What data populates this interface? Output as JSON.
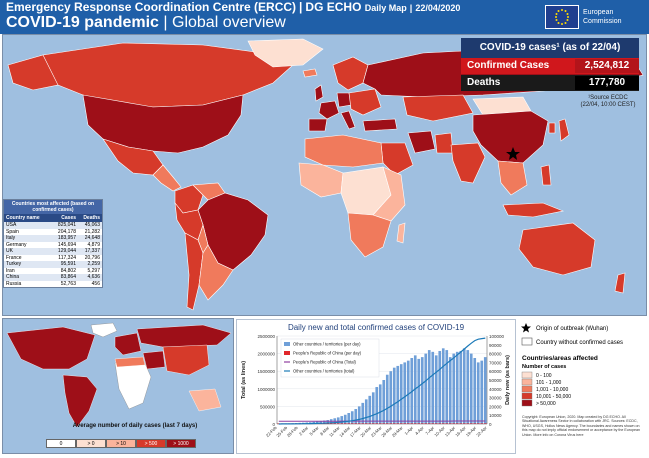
{
  "header": {
    "org": "Emergency Response Coordination Centre (ERCC)",
    "sep1": "|",
    "dept": "DG ECHO",
    "map_type": "Daily Map",
    "sep2": "|",
    "date": "22/04/2020",
    "title": "COVID-19 pandemic",
    "sep3": "|",
    "subtitle": "Global overview",
    "logo_line1": "European",
    "logo_line2": "Commission"
  },
  "summary": {
    "title": "COVID-19 cases¹ (as of 22/04)",
    "confirmed_label": "Confirmed Cases",
    "confirmed_value": "2,524,812",
    "deaths_label": "Deaths",
    "deaths_value": "177,780",
    "source_line1": "¹Source ECDC",
    "source_line2": "(22/04, 10:00 CEST)"
  },
  "colors": {
    "c1": "#fde0d2",
    "c2": "#fbb49c",
    "c3": "#f07a5c",
    "c4": "#d63a2a",
    "c5": "#9e0f18",
    "ocean": "#9fbfe0",
    "nodata": "#ffffff"
  },
  "table": {
    "title": "Countries most affected (based on confirmed cases)",
    "headers": [
      "Country name",
      "Cases",
      "Deaths"
    ],
    "rows": [
      [
        "USA",
        "825,041",
        "45,063"
      ],
      [
        "Spain",
        "204,178",
        "21,282"
      ],
      [
        "Italy",
        "183,957",
        "24,648"
      ],
      [
        "Germany",
        "145,694",
        "4,879"
      ],
      [
        "UK",
        "129,044",
        "17,337"
      ],
      [
        "France",
        "117,324",
        "20,796"
      ],
      [
        "Turkey",
        "95,591",
        "2,259"
      ],
      [
        "Iran",
        "84,802",
        "5,297"
      ],
      [
        "China",
        "83,864",
        "4,636"
      ],
      [
        "Russia",
        "52,763",
        "456"
      ]
    ]
  },
  "chart_data": {
    "type": "bar",
    "title": "Daily new and total confirmed cases of COVID-19",
    "ylabel_left": "Total (as lines)",
    "ylabel_right": "Daily new (as bars)",
    "y_left_ticks": [
      "0",
      "500000",
      "1000000",
      "1500000",
      "2000000",
      "2500000"
    ],
    "y_right_ticks": [
      "0",
      "10000",
      "20000",
      "30000",
      "40000",
      "50000",
      "60000",
      "70000",
      "80000",
      "90000",
      "100000"
    ],
    "ylim_left": [
      0,
      2500000
    ],
    "ylim_right": [
      0,
      100000
    ],
    "x_ticks": [
      "22-Feb",
      "25-Feb",
      "28-Feb",
      "2-Mar",
      "5-Mar",
      "8-Mar",
      "11-Mar",
      "14-Mar",
      "17-Mar",
      "20-Mar",
      "23-Mar",
      "26-Mar",
      "29-Mar",
      "1-Apr",
      "4-Apr",
      "7-Apr",
      "10-Apr",
      "13-Apr",
      "16-Apr",
      "19-Apr",
      "22-Apr"
    ],
    "series": [
      {
        "name": "Other countries / territories (per day)",
        "kind": "bar",
        "values": [
          300,
          400,
          500,
          600,
          800,
          1100,
          1300,
          1500,
          1800,
          2000,
          2500,
          3000,
          3500,
          4000,
          4500,
          5500,
          6500,
          7500,
          9000,
          10500,
          12500,
          14500,
          17000,
          20000,
          24000,
          28000,
          32000,
          36000,
          42000,
          45000,
          50000,
          56000,
          60000,
          64000,
          66000,
          68000,
          70000,
          72000,
          75000,
          78000,
          74000,
          76000,
          80000,
          84000,
          82000,
          78000,
          83000,
          86000,
          84000,
          76000,
          80000,
          82000,
          83000,
          86000,
          84000,
          80000,
          75000,
          70000,
          72000,
          76000
        ]
      },
      {
        "name": "People's Republic of China (per day)",
        "kind": "bar",
        "values": [
          600,
          500,
          450,
          400,
          350,
          300,
          250,
          200,
          150,
          130,
          120,
          100,
          90,
          80,
          70,
          60,
          50,
          50,
          40,
          40,
          30,
          30,
          30,
          30,
          30,
          30,
          30,
          30,
          30,
          30,
          30,
          30,
          30,
          30,
          30,
          30,
          30,
          30,
          30,
          30,
          30,
          30,
          30,
          30,
          30,
          30,
          30,
          30,
          30,
          30,
          30,
          30,
          30,
          30,
          30,
          30,
          30,
          30,
          30,
          30
        ]
      },
      {
        "name": "People's Republic of China (Total)",
        "kind": "line",
        "values": [
          76000,
          76500,
          77000,
          77500,
          78000,
          78300,
          78600,
          79000,
          79300,
          79600,
          79900,
          80100,
          80300,
          80500,
          80600,
          80700,
          80800,
          80900,
          81000,
          81100,
          81200,
          81300,
          81400,
          81500,
          81600,
          81700,
          81800,
          81900,
          82000,
          82100,
          82200,
          82300,
          82400,
          82500,
          82600,
          82700,
          82800,
          82900,
          83000,
          83100,
          83200,
          83300,
          83400,
          83500,
          83550,
          83600,
          83650,
          83700,
          83750,
          83800,
          83810,
          83820,
          83830,
          83840,
          83850,
          83855,
          83860,
          83862,
          83863,
          83864
        ]
      },
      {
        "name": "Other countries / territories (total)",
        "kind": "line",
        "values": [
          1000,
          1500,
          2000,
          2600,
          3400,
          4500,
          5800,
          7300,
          9100,
          11100,
          13600,
          16600,
          20100,
          24100,
          28600,
          34100,
          40600,
          48100,
          57100,
          67600,
          80100,
          94600,
          111600,
          131600,
          155600,
          183600,
          215600,
          251600,
          293600,
          338600,
          388600,
          444600,
          504600,
          568600,
          634600,
          702600,
          772600,
          844600,
          919600,
          997600,
          1071600,
          1147600,
          1227600,
          1311600,
          1393600,
          1471600,
          1554600,
          1640600,
          1724600,
          1800600,
          1880600,
          1962600,
          2045600,
          2131600,
          2215600,
          2295600,
          2370600,
          2410000,
          2425000,
          2440948
        ]
      }
    ]
  },
  "legend": {
    "origin_label": "Origin of outbreak (Wuhan)",
    "nocase_label": "Country without confirmed cases",
    "title": "Countries/areas affected",
    "subtitle": "Number of cases",
    "classes": [
      "0 - 100",
      "101 - 1,000",
      "1,001 - 10,000",
      "10,001 - 50,000",
      "> 50,000"
    ],
    "credits": "Copyright: European Union, 2020. Map created by DG ECHO. All Situational Awareness Sector in collaboration with JRC. Sources: ECDC, WHO, USGS, Hollus News Agency. The boundaries and names shown on this map do not imply official endorsement or acceptance by the European Union. More info on Corona Virus here"
  },
  "daily_legend": {
    "title": "Average number of daily cases (last 7 days)",
    "classes": [
      "0",
      "> 0",
      "> 10",
      "> 500",
      "> 1000"
    ]
  }
}
